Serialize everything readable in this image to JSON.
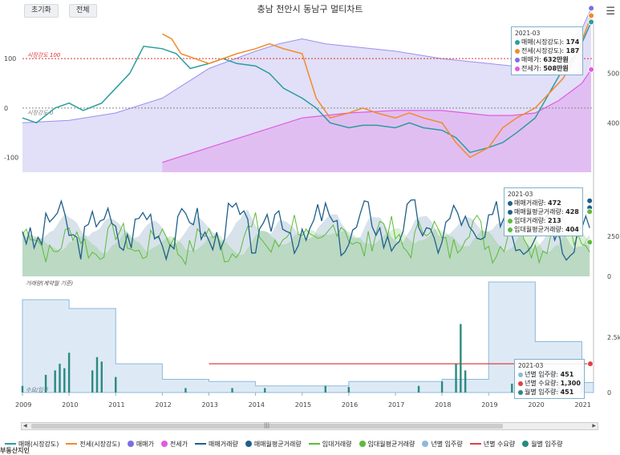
{
  "toolbar": {
    "reset_label": "초기화",
    "all_label": "전체",
    "menu_icon": "hamburger-icon"
  },
  "title": "충남 천안시 동남구 멀티차트",
  "panels": {
    "top": {
      "ref_line_label": "시장강도 100",
      "zero_line_label": "시장강도 0"
    },
    "middle": {},
    "bottom": {
      "label_top": "거래량(계약월 기준)",
      "label_bottom": "수요/입주"
    }
  },
  "axes": {
    "top_left_ticks": [
      "100",
      "0",
      "-100"
    ],
    "top_right_ticks": [
      "500",
      "400"
    ],
    "mid_right_ticks": [
      "250",
      "0"
    ],
    "bottom_right_ticks": [
      "2.5k",
      "0"
    ],
    "x_ticks": [
      "2009",
      "2010",
      "2011",
      "2012",
      "2013",
      "2014",
      "2015",
      "2016",
      "2017",
      "2018",
      "2019",
      "2020",
      "2021"
    ]
  },
  "tooltips": {
    "top": {
      "date": "2021-03",
      "rows": [
        {
          "label": "매매(시장강도): ",
          "value": "174",
          "color": "#2a9d9d"
        },
        {
          "label": "전세(시장강도): ",
          "value": "187",
          "color": "#f28a2a"
        },
        {
          "label": "매매가: ",
          "value": "632만원",
          "color": "#7b6fe0"
        },
        {
          "label": "전세가: ",
          "value": "508만원",
          "color": "#e05ce0"
        }
      ]
    },
    "middle": {
      "date": "2021-03",
      "rows": [
        {
          "label": "매매거래량: ",
          "value": "472",
          "color": "#1f5f8b"
        },
        {
          "label": "매매월평균거래량: ",
          "value": "428",
          "color": "#1f5f8b"
        },
        {
          "label": "임대거래량: ",
          "value": "213",
          "color": "#5dbb3a"
        },
        {
          "label": "임대월평균거래량: ",
          "value": "404",
          "color": "#5dbb3a"
        }
      ]
    },
    "bottom": {
      "date": "2021-03",
      "rows": [
        {
          "label": "년별 입주량: ",
          "value": "451",
          "color": "#8fb8dd"
        },
        {
          "label": "년별 수요량: ",
          "value": "1,300",
          "color": "#e04040"
        },
        {
          "label": "월별 입주량: ",
          "value": "451",
          "color": "#2a8a80"
        }
      ]
    }
  },
  "legend": [
    {
      "label": "매매(시장강도)",
      "type": "line",
      "color": "#2a9d9d"
    },
    {
      "label": "전세(시장강도)",
      "type": "line",
      "color": "#f28a2a"
    },
    {
      "label": "매매가",
      "type": "dot",
      "color": "#7b6fe0"
    },
    {
      "label": "전세가",
      "type": "dot",
      "color": "#e05ce0"
    },
    {
      "label": "매매거래량",
      "type": "line",
      "color": "#1f5f8b"
    },
    {
      "label": "매매월평균거래량",
      "type": "dot",
      "color": "#1f5f8b"
    },
    {
      "label": "임대거래량",
      "type": "line",
      "color": "#5dbb3a"
    },
    {
      "label": "임대월평균거래량",
      "type": "dot",
      "color": "#5dbb3a"
    },
    {
      "label": "년별 입주량",
      "type": "dot",
      "color": "#8fb8dd"
    },
    {
      "label": "년별 수요량",
      "type": "line",
      "color": "#e04040"
    },
    {
      "label": "월별 입주량",
      "type": "dot",
      "color": "#2a8a80"
    }
  ],
  "logo_text": "부동산지인",
  "chart_data": {
    "type": "line",
    "x_range": [
      "2009-01",
      "2021-03"
    ],
    "top_panel": {
      "ylim_left": [
        -130,
        170
      ],
      "ylim_right": [
        300,
        600
      ],
      "series": [
        {
          "name": "매매(시장강도)",
          "axis": "left",
          "color": "#2a9d9d",
          "x": [
            2009.0,
            2009.3,
            2009.7,
            2010.0,
            2010.3,
            2010.7,
            2011.0,
            2011.3,
            2011.6,
            2012.0,
            2012.3,
            2012.6,
            2013.0,
            2013.3,
            2013.6,
            2014.0,
            2014.3,
            2014.6,
            2015.0,
            2015.3,
            2015.6,
            2016.0,
            2016.3,
            2016.6,
            2017.0,
            2017.3,
            2017.6,
            2018.0,
            2018.3,
            2018.6,
            2019.0,
            2019.3,
            2019.6,
            2020.0,
            2020.3,
            2020.6,
            2020.9,
            2021.2
          ],
          "y": [
            -20,
            -30,
            0,
            10,
            -5,
            10,
            40,
            70,
            125,
            120,
            110,
            80,
            90,
            100,
            90,
            85,
            70,
            40,
            20,
            0,
            -30,
            -40,
            -35,
            -35,
            -40,
            -30,
            -40,
            -45,
            -60,
            -90,
            -80,
            -70,
            -50,
            -20,
            30,
            80,
            110,
            174
          ]
        },
        {
          "name": "전세(시장강도)",
          "axis": "left",
          "color": "#f28a2a",
          "x": [
            2012.0,
            2012.2,
            2012.4,
            2012.7,
            2013.0,
            2013.3,
            2013.6,
            2014.0,
            2014.3,
            2014.6,
            2015.0,
            2015.3,
            2015.6,
            2016.0,
            2016.3,
            2016.6,
            2017.0,
            2017.3,
            2017.6,
            2018.0,
            2018.3,
            2018.6,
            2019.0,
            2019.3,
            2019.6,
            2020.0,
            2020.3,
            2020.6,
            2020.9,
            2021.2
          ],
          "y": [
            150,
            140,
            110,
            100,
            90,
            100,
            110,
            120,
            130,
            120,
            110,
            20,
            -20,
            -10,
            0,
            -10,
            -20,
            -10,
            -20,
            -30,
            -70,
            -100,
            -80,
            -40,
            -20,
            0,
            30,
            60,
            110,
            187
          ]
        },
        {
          "name": "매매가",
          "axis": "right",
          "color": "#7b6fe0",
          "x": [
            2009.0,
            2010.0,
            2011.0,
            2012.0,
            2013.0,
            2014.0,
            2014.5,
            2015.0,
            2015.5,
            2016.0,
            2017.0,
            2018.0,
            2019.0,
            2019.5,
            2020.0,
            2020.5,
            2021.0,
            2021.2
          ],
          "y": [
            400,
            405,
            420,
            450,
            510,
            545,
            560,
            570,
            560,
            555,
            545,
            530,
            520,
            515,
            520,
            540,
            590,
            632
          ]
        },
        {
          "name": "전세가",
          "axis": "right",
          "color": "#e05ce0",
          "x": [
            2012.0,
            2013.0,
            2014.0,
            2015.0,
            2016.0,
            2017.0,
            2018.0,
            2019.0,
            2019.5,
            2020.0,
            2020.5,
            2021.0,
            2021.2
          ],
          "y": [
            320,
            350,
            380,
            410,
            420,
            425,
            425,
            415,
            415,
            420,
            445,
            480,
            508
          ]
        }
      ]
    },
    "middle_panel": {
      "ylim": [
        0,
        600
      ],
      "series": [
        {
          "name": "매매거래량",
          "color": "#1f5f8b",
          "last_value": 472
        },
        {
          "name": "매매월평균거래량",
          "color": "#1f5f8b",
          "last_value": 428
        },
        {
          "name": "임대거래량",
          "color": "#5dbb3a",
          "last_value": 213
        },
        {
          "name": "임대월평균거래량",
          "color": "#5dbb3a",
          "last_value": 404
        }
      ]
    },
    "bottom_panel": {
      "ylim": [
        0,
        5000
      ],
      "series": [
        {
          "name": "년별 입주량",
          "color": "#8fb8dd",
          "x": [
            2009.0,
            2010.0,
            2011.0,
            2012.0,
            2013.0,
            2014.0,
            2015.0,
            2016.0,
            2017.0,
            2018.0,
            2019.0,
            2020.0,
            2021.0
          ],
          "y": [
            4200,
            3800,
            1300,
            600,
            500,
            300,
            300,
            500,
            500,
            600,
            5000,
            2300,
            451
          ]
        },
        {
          "name": "년별 수요량",
          "color": "#e04040",
          "x": [
            2013.0,
            2021.2
          ],
          "y": [
            1300,
            1300
          ]
        },
        {
          "name": "월별 입주량",
          "color": "#2a8a80",
          "x": [
            2009.0,
            2009.5,
            2009.7,
            2009.8,
            2009.9,
            2010.0,
            2010.5,
            2010.6,
            2010.7,
            2011.0,
            2012.5,
            2013.5,
            2014.2,
            2015.5,
            2016.0,
            2017.5,
            2018.0,
            2018.3,
            2018.4,
            2018.5,
            2019.5,
            2020.0,
            2020.5,
            2021.0
          ],
          "y": [
            300,
            800,
            1000,
            1300,
            1100,
            1800,
            1000,
            1600,
            1400,
            700,
            200,
            200,
            200,
            300,
            250,
            300,
            500,
            1300,
            3100,
            1000,
            400,
            300,
            500,
            451
          ]
        }
      ]
    }
  }
}
